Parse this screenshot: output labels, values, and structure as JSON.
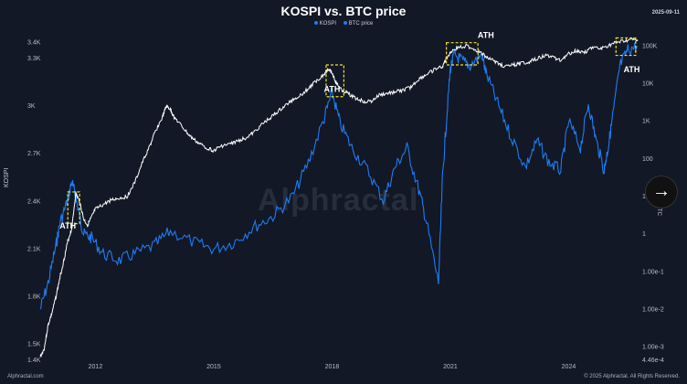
{
  "header": {
    "title": "KOSPI vs. BTC price",
    "date": "2025-09-11"
  },
  "footer": {
    "left": "Alphractal.com",
    "right": "© 2025 Alphractal. All Rights Reserved."
  },
  "watermark": "Alphractal",
  "colors": {
    "kospi": "#ffffff",
    "btc": "#1f7cf2",
    "background": "#121826",
    "highlight": "#f2e12b"
  },
  "chart_data": {
    "type": "line",
    "title": "KOSPI vs. BTC price",
    "legend": {
      "placement": "top-center",
      "entries": [
        "KOSPI",
        "BTC price"
      ]
    },
    "y_left": {
      "label": "KOSPI",
      "ticks": [
        "3.4K",
        "3.3K",
        "3K",
        "2.7K",
        "2.4K",
        "2.1K",
        "1.8K",
        "1.5K",
        "1.4K"
      ],
      "range": [
        1400,
        3450
      ]
    },
    "y_right": {
      "label": "BTC",
      "scale": "log",
      "ticks": [
        "100K",
        "10K",
        "1K",
        "100",
        "10",
        "1",
        "1.00e-1",
        "1.00e-2",
        "1.00e-3",
        "4.46e-4"
      ],
      "range": [
        0.000446,
        200000
      ]
    },
    "x_ticks": [
      "2012",
      "2015",
      "2018",
      "2021",
      "2024"
    ],
    "x_range": [
      2010.6,
      2025.75
    ],
    "annotations": [
      {
        "label": "ATH",
        "series": "KOSPI",
        "x": 2011.3,
        "y": 2228
      },
      {
        "label": "ATH",
        "series": "BTC price",
        "x": 2018.0,
        "y": 6000
      },
      {
        "label": "ATH",
        "series": "KOSPI",
        "x": 2021.9,
        "y": 3430
      },
      {
        "label": "ATH",
        "series": "BTC price",
        "x": 2025.6,
        "y": 20000
      }
    ],
    "highlights": [
      {
        "x": [
          2011.3,
          2011.6
        ],
        "y": [
          2460,
          2260
        ]
      },
      {
        "x": [
          2017.85,
          2018.3
        ],
        "y": [
          3260,
          3060
        ]
      },
      {
        "x": [
          2020.9,
          2021.7
        ],
        "y": [
          3400,
          3260
        ]
      },
      {
        "x": [
          2025.2,
          2025.7
        ],
        "y": [
          3430,
          3320
        ]
      }
    ],
    "series": [
      {
        "name": "KOSPI",
        "x": [
          2010.6,
          2010.7,
          2010.8,
          2010.9,
          2011.0,
          2011.1,
          2011.2,
          2011.3,
          2011.4,
          2011.5,
          2011.6,
          2011.7,
          2011.8,
          2011.9,
          2012.0,
          2012.2,
          2012.4,
          2012.6,
          2012.8,
          2013.0,
          2013.2,
          2013.4,
          2013.5,
          2013.7,
          2013.8,
          2013.9,
          2014.0,
          2014.2,
          2014.4,
          2014.6,
          2014.8,
          2015.0,
          2015.2,
          2015.4,
          2015.6,
          2015.8,
          2016.0,
          2016.2,
          2016.4,
          2016.6,
          2016.8,
          2017.0,
          2017.2,
          2017.4,
          2017.6,
          2017.8,
          2017.9,
          2018.0,
          2018.1,
          2018.2,
          2018.4,
          2018.6,
          2018.8,
          2019.0,
          2019.2,
          2019.4,
          2019.6,
          2019.8,
          2020.0,
          2020.2,
          2020.4,
          2020.6,
          2020.8,
          2020.9,
          2021.0,
          2021.2,
          2021.4,
          2021.6,
          2021.8,
          2022.0,
          2022.2,
          2022.4,
          2022.6,
          2022.8,
          2023.0,
          2023.2,
          2023.4,
          2023.6,
          2023.8,
          2024.0,
          2024.2,
          2024.4,
          2024.6,
          2024.8,
          2025.0,
          2025.2,
          2025.4,
          2025.6,
          2025.75
        ],
        "values": [
          1420,
          1470,
          1620,
          1700,
          1800,
          1920,
          2030,
          2150,
          2228,
          2450,
          2400,
          2290,
          2250,
          2300,
          2350,
          2380,
          2410,
          2420,
          2430,
          2520,
          2650,
          2760,
          2830,
          2930,
          3000,
          2980,
          2930,
          2870,
          2810,
          2770,
          2740,
          2720,
          2750,
          2760,
          2780,
          2800,
          2830,
          2880,
          2920,
          2960,
          3000,
          3040,
          3070,
          3110,
          3160,
          3200,
          3240,
          3210,
          3150,
          3110,
          3080,
          3050,
          3030,
          3030,
          3070,
          3080,
          3090,
          3100,
          3120,
          3170,
          3200,
          3230,
          3250,
          3300,
          3340,
          3370,
          3380,
          3360,
          3330,
          3300,
          3270,
          3250,
          3260,
          3270,
          3280,
          3300,
          3320,
          3310,
          3290,
          3330,
          3350,
          3340,
          3370,
          3360,
          3380,
          3400,
          3410,
          3420,
          3410
        ]
      },
      {
        "name": "BTC price",
        "x": [
          2010.6,
          2010.8,
          2011.0,
          2011.1,
          2011.3,
          2011.4,
          2011.5,
          2011.6,
          2011.7,
          2011.9,
          2012.2,
          2012.6,
          2013.0,
          2013.5,
          2013.9,
          2014.5,
          2015.0,
          2015.5,
          2016.0,
          2016.5,
          2017.0,
          2017.4,
          2017.8,
          2018.0,
          2018.2,
          2018.5,
          2018.9,
          2019.3,
          2019.6,
          2019.9,
          2020.2,
          2020.4,
          2020.7,
          2020.8,
          2020.9,
          2021.0,
          2021.1,
          2021.3,
          2021.5,
          2021.8,
          2021.9,
          2022.2,
          2022.5,
          2022.9,
          2023.2,
          2023.5,
          2023.8,
          2024.0,
          2024.3,
          2024.5,
          2024.7,
          2024.9,
          2025.0,
          2025.1,
          2025.3,
          2025.5,
          2025.75
        ],
        "values": [
          0.01,
          0.05,
          0.5,
          2,
          8,
          25,
          10,
          3,
          1,
          0.8,
          0.3,
          0.2,
          0.3,
          0.5,
          1.2,
          0.6,
          0.4,
          0.6,
          1.5,
          3,
          10,
          80,
          1200,
          6000,
          900,
          200,
          50,
          8,
          60,
          200,
          15,
          2,
          0.05,
          30,
          1000,
          25000,
          60000,
          40000,
          30000,
          60000,
          20000,
          3000,
          500,
          60,
          300,
          80,
          50,
          1000,
          200,
          3000,
          300,
          50,
          200,
          1000,
          30000,
          80000,
          100000
        ]
      }
    ]
  }
}
